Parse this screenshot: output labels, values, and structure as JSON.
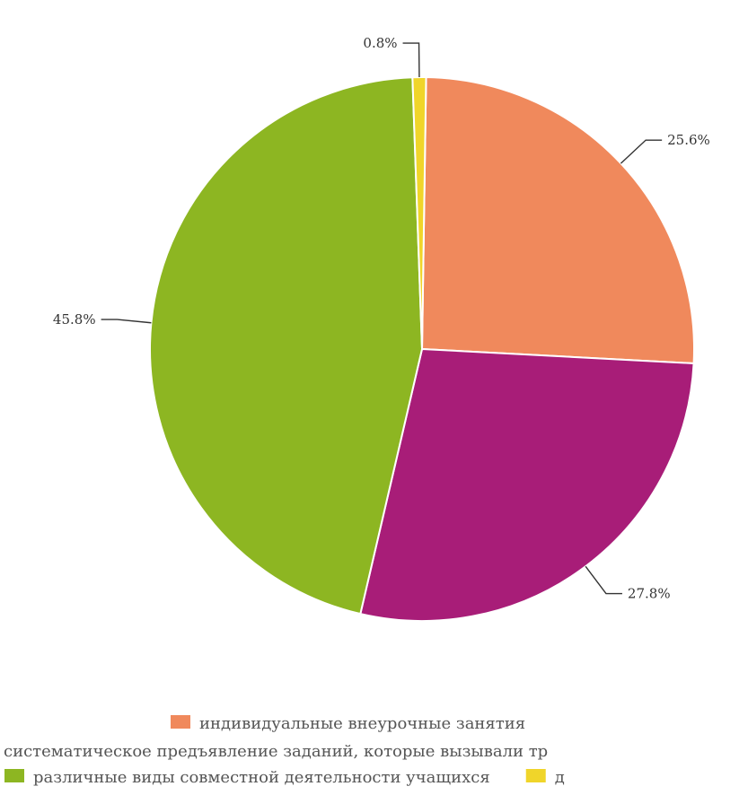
{
  "chart_data": {
    "type": "pie",
    "title": "",
    "slices": [
      {
        "label": "индивидуальные внеурочные занятия",
        "value": 25.6,
        "display": "25.6%",
        "color": "#f0895c"
      },
      {
        "label": "систематическое предъявление заданий, которые вызывали тр",
        "value": 27.8,
        "display": "27.8%",
        "color": "#a81d78"
      },
      {
        "label": "различные виды совместной деятельности учащихся",
        "value": 45.8,
        "display": "45.8%",
        "color": "#8db622"
      },
      {
        "label": "д",
        "value": 0.8,
        "display": "0.8%",
        "color": "#f0d52a"
      }
    ],
    "legend_position": "bottom"
  }
}
